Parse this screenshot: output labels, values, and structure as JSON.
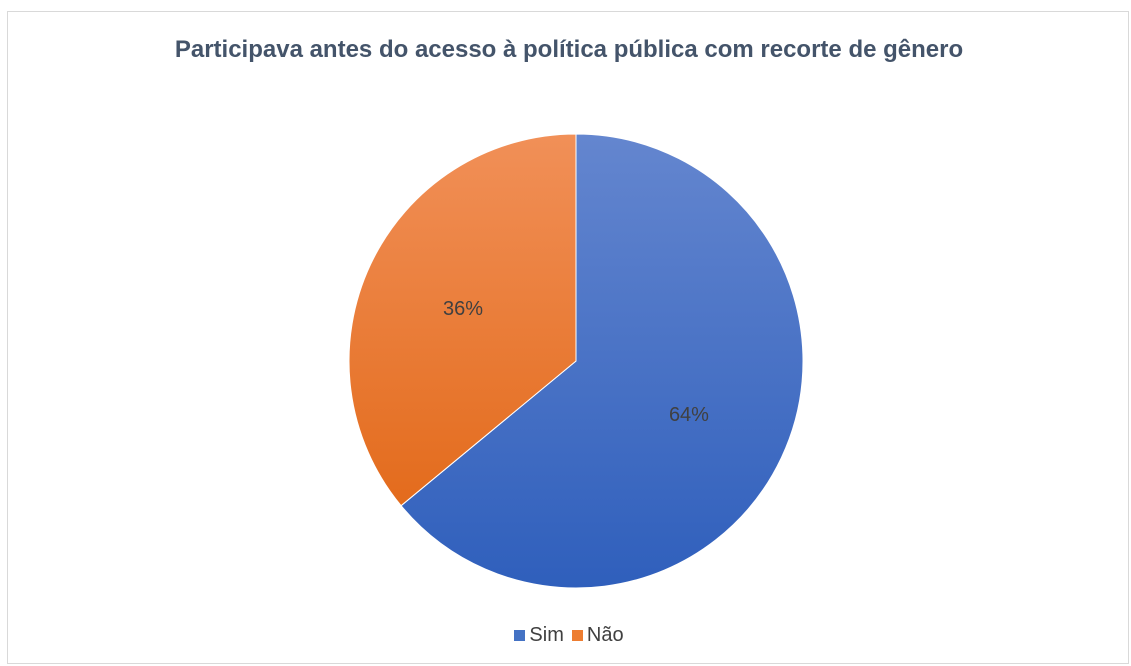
{
  "chart_data": {
    "type": "pie",
    "title": "Participava antes do acesso à política pública com recorte de gênero",
    "categories": [
      "Sim",
      "Não"
    ],
    "values": [
      64,
      36
    ],
    "labels": [
      "64%",
      "36%"
    ],
    "colors": [
      "#4472c4",
      "#ed7d31"
    ],
    "legend_position": "bottom"
  }
}
